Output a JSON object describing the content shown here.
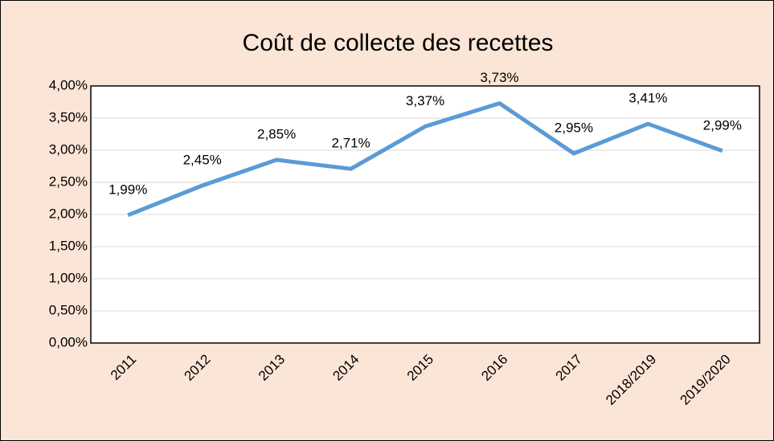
{
  "chart_data": {
    "type": "line",
    "title": "Coût de collecte des recettes",
    "categories": [
      "2011",
      "2012",
      "2013",
      "2014",
      "2015",
      "2016",
      "2017",
      "2018/2019",
      "2019/2020"
    ],
    "series": [
      {
        "name": "Coût de collecte",
        "color": "#5b9bd5",
        "values": [
          1.99,
          2.45,
          2.85,
          2.71,
          3.37,
          3.73,
          2.95,
          3.41,
          2.99
        ],
        "value_labels": [
          "1,99%",
          "2,45%",
          "2,85%",
          "2,71%",
          "3,37%",
          "3,73%",
          "2,95%",
          "3,41%",
          "2,99%"
        ]
      }
    ],
    "ylim": [
      0,
      4
    ],
    "yticks": [
      {
        "value": 0,
        "label": "0,00%"
      },
      {
        "value": 0.5,
        "label": "0,50%"
      },
      {
        "value": 1,
        "label": "1,00%"
      },
      {
        "value": 1.5,
        "label": "1,50%"
      },
      {
        "value": 2,
        "label": "2,00%"
      },
      {
        "value": 2.5,
        "label": "2,50%"
      },
      {
        "value": 3,
        "label": "3,00%"
      },
      {
        "value": 3.5,
        "label": "3,50%"
      },
      {
        "value": 4,
        "label": "4,00%"
      }
    ],
    "grid": true
  }
}
